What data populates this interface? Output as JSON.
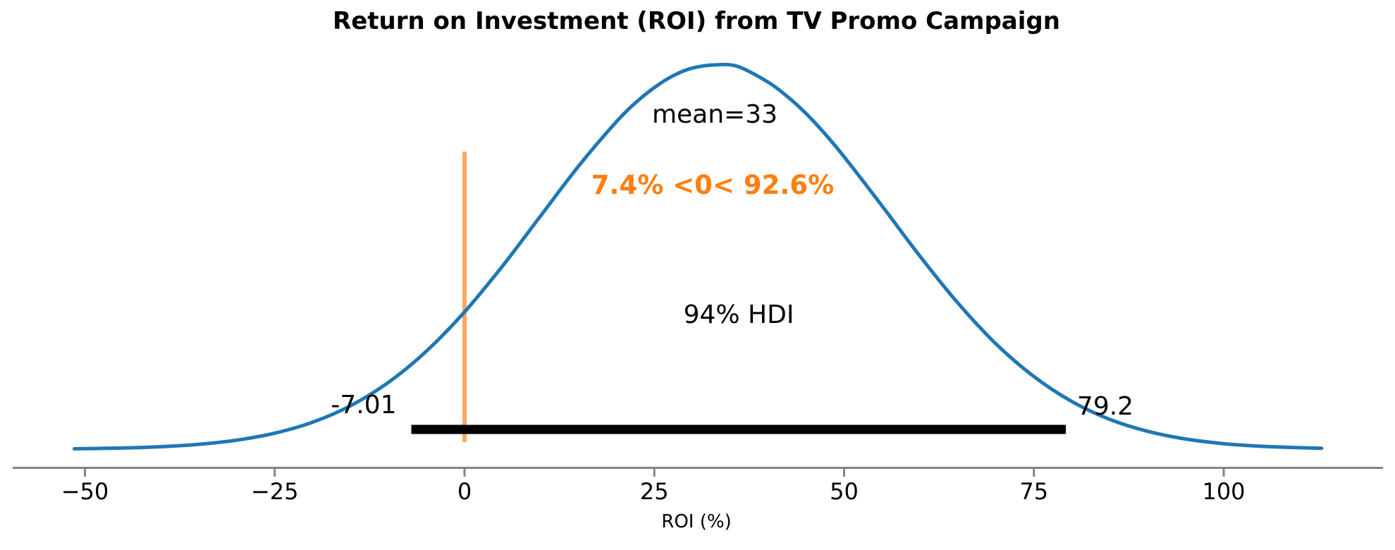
{
  "chart_data": {
    "type": "kde",
    "title": "Return on Investment (ROI) from TV Promo Campaign",
    "xlabel": "ROI (%)",
    "x_tick_values": [
      -50,
      -25,
      0,
      25,
      50,
      75,
      100
    ],
    "x_tick_labels": [
      "−50",
      "−25",
      "0",
      "25",
      "50",
      "75",
      "100"
    ],
    "xlim_visible": [
      -59.5,
      121
    ],
    "grid": false,
    "legend": false,
    "mean": 33,
    "ref_value": 0,
    "hdi_probability": "94%",
    "hdi_lower": -7.01,
    "hdi_upper": 79.2,
    "annotations": {
      "mean_label": "mean=33",
      "ref_val_label": "7.4% <0< 92.6%",
      "prob_below_ref": "7.4%",
      "prob_above_ref": "92.6%",
      "hdi_label": "94% HDI",
      "hdi_lower_label": "-7.01",
      "hdi_upper_label": "79.2"
    },
    "curve_points": [
      [
        -51.4,
        0.001
      ],
      [
        -45,
        0.003
      ],
      [
        -40,
        0.0065
      ],
      [
        -35,
        0.0126
      ],
      [
        -30,
        0.0235
      ],
      [
        -25,
        0.0416
      ],
      [
        -20,
        0.0703
      ],
      [
        -15,
        0.1133
      ],
      [
        -10,
        0.1741
      ],
      [
        -5,
        0.2554
      ],
      [
        0,
        0.357
      ],
      [
        5,
        0.4766
      ],
      [
        10,
        0.6065
      ],
      [
        15,
        0.736
      ],
      [
        20,
        0.852
      ],
      [
        22.5,
        0.901
      ],
      [
        25,
        0.941
      ],
      [
        27.5,
        0.972
      ],
      [
        30,
        0.9915
      ],
      [
        33,
        1.0
      ],
      [
        36,
        0.9957
      ],
      [
        40,
        0.9548
      ],
      [
        42.5,
        0.918
      ],
      [
        45,
        0.873
      ],
      [
        47.5,
        0.82
      ],
      [
        50,
        0.761
      ],
      [
        55,
        0.633
      ],
      [
        60,
        0.502
      ],
      [
        65,
        0.38
      ],
      [
        70,
        0.274
      ],
      [
        75,
        0.189
      ],
      [
        80,
        0.124
      ],
      [
        85,
        0.0775
      ],
      [
        90,
        0.0464
      ],
      [
        95,
        0.0265
      ],
      [
        100,
        0.0144
      ],
      [
        105,
        0.0075
      ],
      [
        110,
        0.0039
      ],
      [
        112.9,
        0.0024
      ]
    ],
    "colors": {
      "curve": "#1f77b4",
      "ref_line": "#fca95f",
      "ref_text": "#ff7f0e",
      "hdi_bar": "#000000",
      "axis_spine": "#848484",
      "text": "#000000"
    }
  }
}
